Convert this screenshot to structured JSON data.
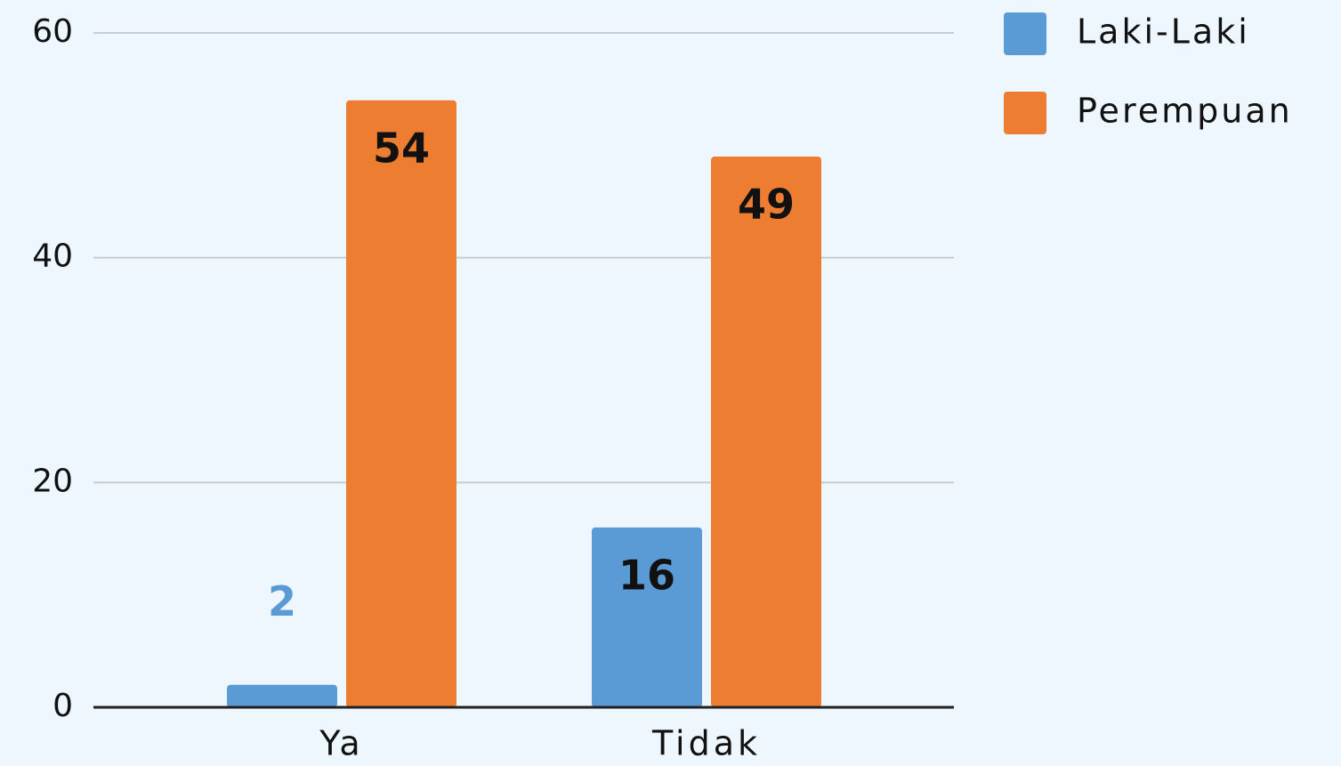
{
  "chart_data": {
    "type": "bar",
    "categories": [
      "Ya",
      "Tidak"
    ],
    "series": [
      {
        "name": "Laki-Laki",
        "color": "#5b9bd5",
        "values": [
          2,
          16
        ]
      },
      {
        "name": "Perempuan",
        "color": "#ed7d31",
        "values": [
          54,
          49
        ]
      }
    ],
    "ylim": [
      0,
      60
    ],
    "yticks": [
      0,
      20,
      40,
      60
    ],
    "grid": true,
    "legend": "right"
  }
}
